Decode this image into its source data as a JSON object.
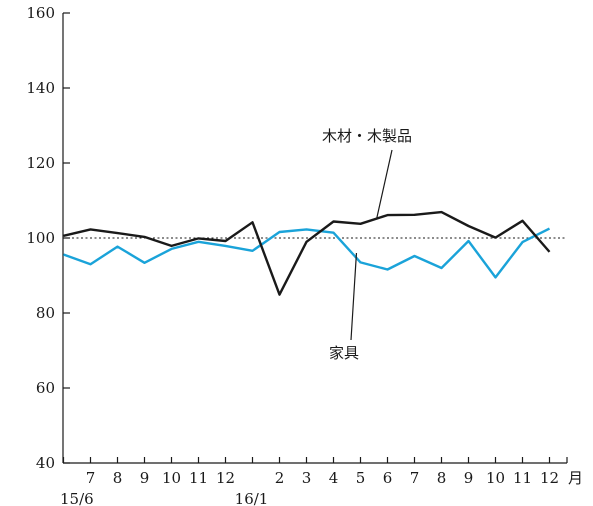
{
  "chart_data": {
    "type": "line",
    "title": "",
    "xlabel": "",
    "ylabel": "",
    "ylim": [
      40,
      160
    ],
    "yticks": [
      40,
      60,
      80,
      100,
      120,
      140,
      160
    ],
    "categories": [
      "15/6",
      "7",
      "8",
      "9",
      "10",
      "11",
      "12",
      "16/1",
      "2",
      "3",
      "4",
      "5",
      "6",
      "7",
      "8",
      "9",
      "10",
      "11",
      "12"
    ],
    "x_tick_labels": [
      "",
      "7",
      "8",
      "9",
      "10",
      "11",
      "12",
      "",
      "2",
      "3",
      "4",
      "5",
      "6",
      "7",
      "8",
      "9",
      "10",
      "11",
      "12"
    ],
    "x_secondary_labels": [
      {
        "index": 0,
        "text": "15/6"
      },
      {
        "index": 7,
        "text": "16/1"
      }
    ],
    "x_unit_label": "月",
    "reference_line": 100,
    "series": [
      {
        "name": "木材・木製品",
        "color": "#1a1a1a",
        "values": [
          100.6,
          102.3,
          101.3,
          100.3,
          97.9,
          99.9,
          99.2,
          104.2,
          84.9,
          99.0,
          104.4,
          103.8,
          106.1,
          106.2,
          106.9,
          103.2,
          100.1,
          104.6,
          96.3
        ]
      },
      {
        "name": "家具",
        "color": "#1aa3d9",
        "values": [
          95.6,
          93.0,
          97.7,
          93.4,
          97.1,
          99.0,
          97.9,
          96.6,
          101.6,
          102.3,
          101.4,
          93.5,
          91.6,
          95.2,
          92.0,
          99.2,
          89.5,
          98.9,
          102.5
        ]
      }
    ]
  }
}
